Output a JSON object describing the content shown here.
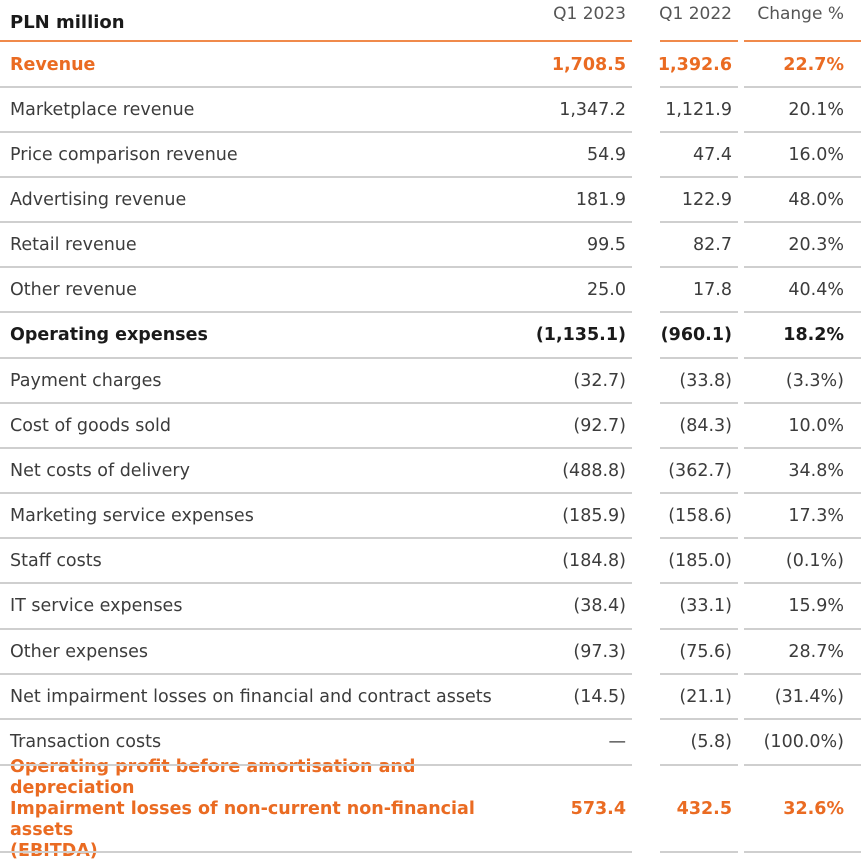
{
  "table": {
    "header": {
      "label": "PLN million",
      "col1": "Q1 2023",
      "col2": "Q1 2022",
      "col3": "Change %"
    },
    "rows": [
      {
        "label": "Revenue",
        "q1_2023": "1,708.5",
        "q1_2022": "1,392.6",
        "change": "22.7%",
        "style": "accent"
      },
      {
        "label": "Marketplace revenue",
        "q1_2023": "1,347.2",
        "q1_2022": "1,121.9",
        "change": "20.1%",
        "style": "normal"
      },
      {
        "label": "Price comparison revenue",
        "q1_2023": "54.9",
        "q1_2022": "47.4",
        "change": "16.0%",
        "style": "normal"
      },
      {
        "label": "Advertising revenue",
        "q1_2023": "181.9",
        "q1_2022": "122.9",
        "change": "48.0%",
        "style": "normal"
      },
      {
        "label": "Retail revenue",
        "q1_2023": "99.5",
        "q1_2022": "82.7",
        "change": "20.3%",
        "style": "normal"
      },
      {
        "label": "Other revenue",
        "q1_2023": "25.0",
        "q1_2022": "17.8",
        "change": "40.4%",
        "style": "normal"
      },
      {
        "label": "Operating expenses",
        "q1_2023": "(1,135.1)",
        "q1_2022": "(960.1)",
        "change": "18.2%",
        "style": "bold"
      },
      {
        "label": "Payment charges",
        "q1_2023": "(32.7)",
        "q1_2022": "(33.8)",
        "change": "(3.3%)",
        "style": "normal"
      },
      {
        "label": "Cost of goods sold",
        "q1_2023": "(92.7)",
        "q1_2022": "(84.3)",
        "change": "10.0%",
        "style": "normal"
      },
      {
        "label": "Net costs of delivery",
        "q1_2023": "(488.8)",
        "q1_2022": "(362.7)",
        "change": "34.8%",
        "style": "normal"
      },
      {
        "label": "Marketing service expenses",
        "q1_2023": "(185.9)",
        "q1_2022": "(158.6)",
        "change": "17.3%",
        "style": "normal"
      },
      {
        "label": "Staff costs",
        "q1_2023": "(184.8)",
        "q1_2022": "(185.0)",
        "change": "(0.1%)",
        "style": "normal"
      },
      {
        "label": "IT service expenses",
        "q1_2023": "(38.4)",
        "q1_2022": "(33.1)",
        "change": "15.9%",
        "style": "normal"
      },
      {
        "label": "Other expenses",
        "q1_2023": "(97.3)",
        "q1_2022": "(75.6)",
        "change": "28.7%",
        "style": "normal"
      },
      {
        "label": "Net impairment losses on financial and contract assets",
        "q1_2023": "(14.5)",
        "q1_2022": "(21.1)",
        "change": "(31.4%)",
        "style": "normal"
      },
      {
        "label": "Transaction costs",
        "q1_2023": "—",
        "q1_2022": "(5.8)",
        "change": "(100.0%)",
        "style": "normal"
      }
    ],
    "ebitda": {
      "label_line1": "Operating profit before amortisation and depreciation",
      "label_line2": "Impairment losses of non-current non-financial assets",
      "label_line3": "(EBITDA)",
      "q1_2023": "573.4",
      "q1_2022": "432.5",
      "change": "32.6%"
    }
  },
  "colors": {
    "accent": "#ea6b22",
    "header_rule": "#f08a4b",
    "row_rule": "#cfcfcf"
  }
}
